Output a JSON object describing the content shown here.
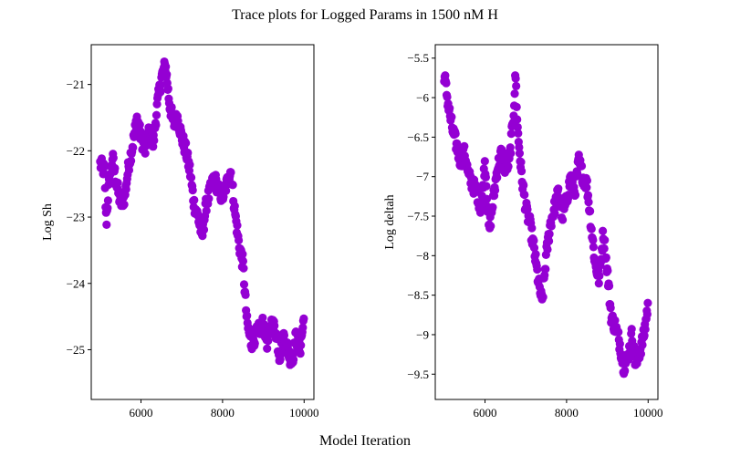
{
  "figure": {
    "title": "Trace plots for Logged Params in 1500 nM H",
    "xlabel": "Model Iteration"
  },
  "chart_data": [
    {
      "type": "scatter",
      "ylabel": "Log Sh",
      "xlim": [
        4780,
        10240
      ],
      "ylim": [
        -25.75,
        -20.4
      ],
      "xticks": [
        6000,
        8000,
        10000
      ],
      "yticks": [
        -21,
        -22,
        -23,
        -24,
        -25
      ],
      "color": "#9400D3",
      "grid": false,
      "legend": "none",
      "anchors": [
        [
          5000,
          -22.2
        ],
        [
          5100,
          -22.3
        ],
        [
          5150,
          -23.1
        ],
        [
          5200,
          -22.6
        ],
        [
          5300,
          -22.1
        ],
        [
          5400,
          -22.5
        ],
        [
          5500,
          -22.8
        ],
        [
          5600,
          -22.7
        ],
        [
          5700,
          -22.2
        ],
        [
          5800,
          -21.9
        ],
        [
          5900,
          -21.5
        ],
        [
          6000,
          -21.8
        ],
        [
          6100,
          -22.0
        ],
        [
          6200,
          -21.7
        ],
        [
          6300,
          -21.9
        ],
        [
          6400,
          -21.3
        ],
        [
          6500,
          -20.9
        ],
        [
          6600,
          -20.7
        ],
        [
          6700,
          -21.3
        ],
        [
          6800,
          -21.6
        ],
        [
          6900,
          -21.5
        ],
        [
          7000,
          -21.8
        ],
        [
          7100,
          -22.0
        ],
        [
          7200,
          -22.3
        ],
        [
          7300,
          -22.8
        ],
        [
          7400,
          -23.0
        ],
        [
          7500,
          -23.3
        ],
        [
          7600,
          -22.8
        ],
        [
          7700,
          -22.6
        ],
        [
          7800,
          -22.4
        ],
        [
          7900,
          -22.6
        ],
        [
          8000,
          -22.7
        ],
        [
          8100,
          -22.5
        ],
        [
          8200,
          -22.3
        ],
        [
          8300,
          -22.9
        ],
        [
          8400,
          -23.4
        ],
        [
          8500,
          -23.7
        ],
        [
          8600,
          -24.6
        ],
        [
          8700,
          -24.9
        ],
        [
          8800,
          -24.8
        ],
        [
          8900,
          -24.7
        ],
        [
          9000,
          -24.6
        ],
        [
          9100,
          -24.9
        ],
        [
          9200,
          -24.6
        ],
        [
          9300,
          -24.7
        ],
        [
          9400,
          -25.1
        ],
        [
          9500,
          -24.8
        ],
        [
          9600,
          -25.0
        ],
        [
          9700,
          -25.2
        ],
        [
          9800,
          -24.8
        ],
        [
          9900,
          -25.0
        ],
        [
          10000,
          -24.5
        ]
      ]
    },
    {
      "type": "scatter",
      "ylabel": "Log deltah",
      "xlim": [
        4780,
        10240
      ],
      "ylim": [
        -9.82,
        -5.33
      ],
      "xticks": [
        6000,
        8000,
        10000
      ],
      "yticks": [
        -5.5,
        -6.0,
        -6.5,
        -7.0,
        -7.5,
        -8.0,
        -8.5,
        -9.0,
        -9.5
      ],
      "color": "#9400D3",
      "grid": false,
      "legend": "none",
      "anchors": [
        [
          5000,
          -5.7
        ],
        [
          5100,
          -6.1
        ],
        [
          5200,
          -6.4
        ],
        [
          5300,
          -6.6
        ],
        [
          5400,
          -6.8
        ],
        [
          5500,
          -6.7
        ],
        [
          5600,
          -7.0
        ],
        [
          5700,
          -7.1
        ],
        [
          5800,
          -7.2
        ],
        [
          5900,
          -7.4
        ],
        [
          6000,
          -6.8
        ],
        [
          6100,
          -7.7
        ],
        [
          6200,
          -7.3
        ],
        [
          6300,
          -6.9
        ],
        [
          6400,
          -6.7
        ],
        [
          6500,
          -6.9
        ],
        [
          6600,
          -6.8
        ],
        [
          6700,
          -6.2
        ],
        [
          6750,
          -5.7
        ],
        [
          6800,
          -6.4
        ],
        [
          6900,
          -7.0
        ],
        [
          7000,
          -7.4
        ],
        [
          7100,
          -7.6
        ],
        [
          7200,
          -7.9
        ],
        [
          7300,
          -8.3
        ],
        [
          7400,
          -8.6
        ],
        [
          7500,
          -8.0
        ],
        [
          7600,
          -7.6
        ],
        [
          7700,
          -7.4
        ],
        [
          7800,
          -7.2
        ],
        [
          7900,
          -7.5
        ],
        [
          8000,
          -7.3
        ],
        [
          8100,
          -7.0
        ],
        [
          8200,
          -7.2
        ],
        [
          8300,
          -6.8
        ],
        [
          8400,
          -7.0
        ],
        [
          8500,
          -7.1
        ],
        [
          8600,
          -7.6
        ],
        [
          8700,
          -8.1
        ],
        [
          8800,
          -8.3
        ],
        [
          8900,
          -7.7
        ],
        [
          9000,
          -8.2
        ],
        [
          9100,
          -8.8
        ],
        [
          9200,
          -8.9
        ],
        [
          9300,
          -9.1
        ],
        [
          9400,
          -9.4
        ],
        [
          9500,
          -9.3
        ],
        [
          9600,
          -9.0
        ],
        [
          9700,
          -9.4
        ],
        [
          9800,
          -9.2
        ],
        [
          9900,
          -9.0
        ],
        [
          10000,
          -8.6
        ]
      ]
    }
  ]
}
